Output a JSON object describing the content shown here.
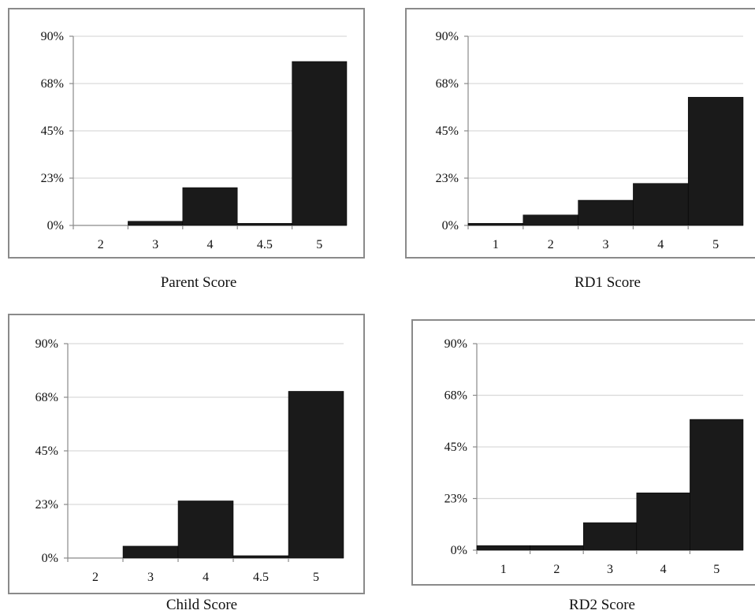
{
  "chart_data": [
    {
      "type": "bar",
      "xlabel": "Parent Score",
      "categories": [
        "2",
        "3",
        "4",
        "4.5",
        "5"
      ],
      "values": [
        0,
        2,
        18,
        1,
        78
      ],
      "ylim": [
        0,
        90
      ],
      "yticks": [
        "0%",
        "23%",
        "45%",
        "68%",
        "90%"
      ],
      "grid": true
    },
    {
      "type": "bar",
      "xlabel": "RD1 Score",
      "categories": [
        "1",
        "2",
        "3",
        "4",
        "5"
      ],
      "values": [
        1,
        5,
        12,
        20,
        61
      ],
      "ylim": [
        0,
        90
      ],
      "yticks": [
        "0%",
        "23%",
        "45%",
        "68%",
        "90%"
      ],
      "grid": true
    },
    {
      "type": "bar",
      "xlabel": "Child Score",
      "categories": [
        "2",
        "3",
        "4",
        "4.5",
        "5"
      ],
      "values": [
        0,
        5,
        24,
        1,
        70
      ],
      "ylim": [
        0,
        90
      ],
      "yticks": [
        "0%",
        "23%",
        "45%",
        "68%",
        "90%"
      ],
      "grid": true
    },
    {
      "type": "bar",
      "xlabel": "RD2 Score",
      "categories": [
        "1",
        "2",
        "3",
        "4",
        "5"
      ],
      "values": [
        2,
        2,
        12,
        25,
        57
      ],
      "ylim": [
        0,
        90
      ],
      "yticks": [
        "0%",
        "23%",
        "45%",
        "68%",
        "90%"
      ],
      "grid": true
    }
  ]
}
